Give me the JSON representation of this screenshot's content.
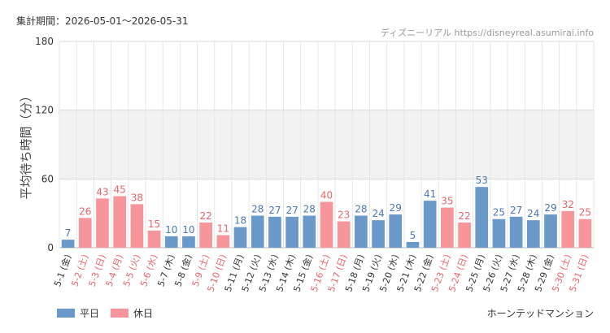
{
  "header": {
    "period_label": "集計期間：2026-05-01～2026-05-31",
    "source_label": "ディズニーリアル https://disneyreal.asumirai.info"
  },
  "footer": {
    "attraction_name": "ホーンテッドマンション"
  },
  "colors": {
    "weekday": "#6a98c8",
    "holiday": "#f7969a",
    "weekday_text": "#4a78b0",
    "holiday_text": "#e8646a",
    "band": "#f2f2f2",
    "grid": "#e6e6e6"
  },
  "chart_data": {
    "type": "bar",
    "ylabel": "平均待ち時間（分）",
    "ylim": [
      0,
      180
    ],
    "yticks": [
      0,
      60,
      120,
      180
    ],
    "grid": true,
    "legend_position": "bottom-left",
    "shaded_band": [
      60,
      120
    ],
    "legend": [
      {
        "name": "平日",
        "kind": "weekday"
      },
      {
        "name": "休日",
        "kind": "holiday"
      }
    ],
    "categories": [
      "5-1 (金)",
      "5-2 (土)",
      "5-3 (日)",
      "5-4 (月)",
      "5-5 (火)",
      "5-6 (水)",
      "5-7 (木)",
      "5-8 (金)",
      "5-9 (土)",
      "5-10 (日)",
      "5-11 (月)",
      "5-12 (火)",
      "5-13 (水)",
      "5-14 (木)",
      "5-15 (金)",
      "5-16 (土)",
      "5-17 (日)",
      "5-18 (月)",
      "5-19 (火)",
      "5-20 (水)",
      "5-21 (木)",
      "5-22 (金)",
      "5-23 (土)",
      "5-24 (日)",
      "5-25 (月)",
      "5-26 (火)",
      "5-27 (水)",
      "5-28 (木)",
      "5-29 (金)",
      "5-30 (土)",
      "5-31 (日)"
    ],
    "values": [
      7,
      26,
      43,
      45,
      38,
      15,
      10,
      10,
      22,
      11,
      18,
      28,
      27,
      27,
      28,
      40,
      23,
      28,
      24,
      29,
      5,
      41,
      35,
      22,
      53,
      25,
      27,
      24,
      29,
      32,
      25
    ],
    "day_type": [
      "weekday",
      "holiday",
      "holiday",
      "holiday",
      "holiday",
      "holiday",
      "weekday",
      "weekday",
      "holiday",
      "holiday",
      "weekday",
      "weekday",
      "weekday",
      "weekday",
      "weekday",
      "holiday",
      "holiday",
      "weekday",
      "weekday",
      "weekday",
      "weekday",
      "weekday",
      "holiday",
      "holiday",
      "weekday",
      "weekday",
      "weekday",
      "weekday",
      "weekday",
      "holiday",
      "holiday"
    ]
  }
}
